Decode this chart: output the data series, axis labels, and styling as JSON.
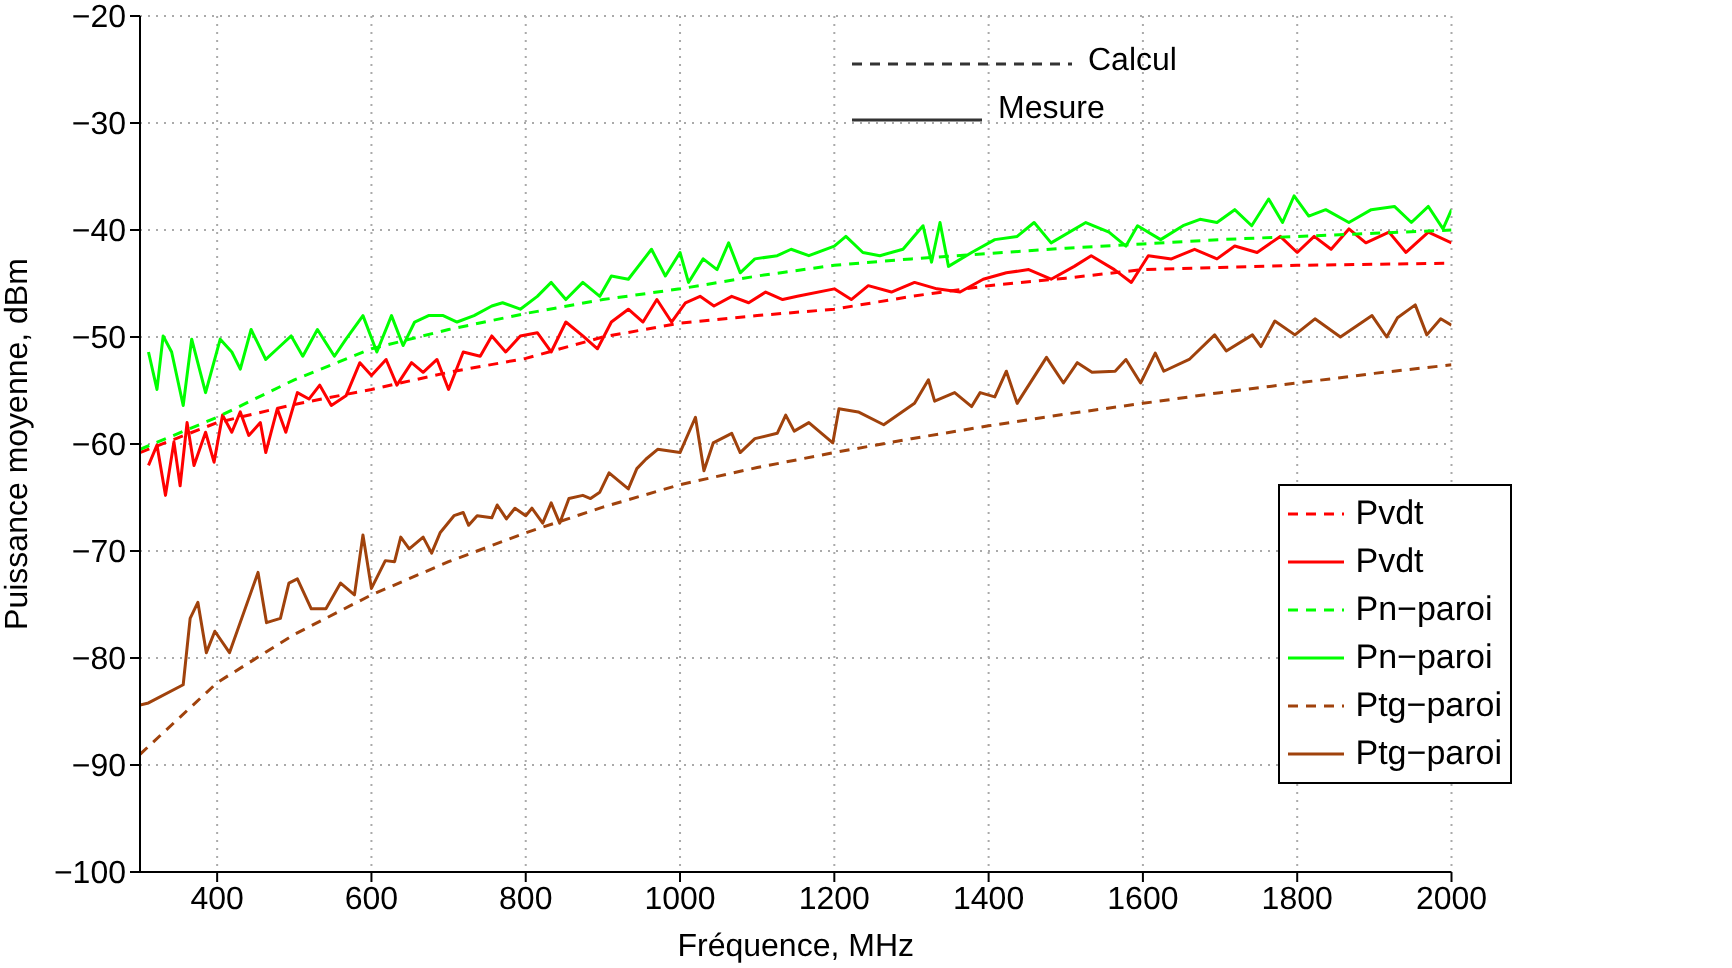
{
  "chart_data": {
    "type": "line",
    "xlabel": "Fréquence, MHz",
    "ylabel": "Puissance moyenne, dBm",
    "xlim": [
      300,
      2000
    ],
    "ylim": [
      -100,
      -20
    ],
    "xticks": [
      400,
      600,
      800,
      1000,
      1200,
      1400,
      1600,
      1800,
      2000
    ],
    "yticks": [
      -100,
      -90,
      -80,
      -70,
      -60,
      -50,
      -40,
      -30,
      -20
    ],
    "grid": true,
    "legend": "right",
    "marker": "none",
    "annotations": [
      "Calcul",
      "Mesure"
    ],
    "series": [
      {
        "name": "Pvdt",
        "color": "#ff0000",
        "line_style": "dashed",
        "x": [
          300,
          400,
          500,
          600,
          700,
          800,
          900,
          1000,
          1100,
          1200,
          1300,
          1400,
          1500,
          1600,
          1700,
          1800,
          1900,
          2000
        ],
        "values": [
          -60.8,
          -58,
          -56.3,
          -54.9,
          -53.3,
          -52,
          -50,
          -48.7,
          -48,
          -47.4,
          -46.2,
          -45.2,
          -44.5,
          -43.7,
          -43.5,
          -43.3,
          -43.2,
          -43.1
        ]
      },
      {
        "name": "Pvdt",
        "color": "#ff0000",
        "line_style": "solid",
        "x": [
          311,
          322,
          333,
          344,
          352,
          361,
          370,
          385,
          396,
          407,
          419,
          430,
          441,
          456,
          463,
          478,
          489,
          504,
          519,
          533,
          548,
          567,
          585,
          600,
          619,
          633,
          652,
          667,
          685,
          700,
          719,
          741,
          756,
          774,
          793,
          815,
          833,
          852,
          874,
          893,
          911,
          933,
          952,
          970,
          989,
          1007,
          1026,
          1044,
          1067,
          1089,
          1111,
          1133,
          1152,
          1200,
          1222,
          1244,
          1274,
          1304,
          1333,
          1363,
          1393,
          1423,
          1452,
          1481,
          1511,
          1533,
          1563,
          1585,
          1607,
          1637,
          1667,
          1696,
          1719,
          1748,
          1778,
          1800,
          1822,
          1844,
          1867,
          1889,
          1919,
          1941,
          1970,
          2000
        ],
        "values": [
          -62,
          -60.1,
          -64.8,
          -59.8,
          -63.9,
          -58,
          -62,
          -58.9,
          -61.7,
          -57.3,
          -58.9,
          -57,
          -59.2,
          -58,
          -60.8,
          -56.7,
          -58.9,
          -55.2,
          -55.8,
          -54.5,
          -56.4,
          -55.5,
          -52.4,
          -53.6,
          -52.1,
          -54.5,
          -52.4,
          -53.3,
          -52.1,
          -54.9,
          -51.4,
          -51.8,
          -49.9,
          -51.4,
          -49.9,
          -49.6,
          -51.4,
          -48.6,
          -49.9,
          -51.1,
          -48.6,
          -47.4,
          -48.6,
          -46.5,
          -48.6,
          -46.8,
          -46.2,
          -47.1,
          -46.2,
          -46.8,
          -45.8,
          -46.5,
          -46.2,
          -45.5,
          -46.5,
          -45.2,
          -45.8,
          -44.9,
          -45.5,
          -45.8,
          -44.6,
          -44,
          -43.7,
          -44.6,
          -43.4,
          -42.4,
          -43.7,
          -44.9,
          -42.4,
          -42.7,
          -41.8,
          -42.7,
          -41.5,
          -42.1,
          -40.6,
          -42.1,
          -40.6,
          -41.8,
          -39.9,
          -41.2,
          -40.2,
          -42.1,
          -40.2,
          -41.2
        ]
      },
      {
        "name": "Pn−paroi",
        "color": "#00ff00",
        "line_style": "dashed",
        "x": [
          300,
          400,
          500,
          600,
          700,
          800,
          900,
          1000,
          1100,
          1200,
          1300,
          1400,
          1500,
          1600,
          1700,
          1800,
          1900,
          2000
        ],
        "values": [
          -60.5,
          -57.5,
          -54,
          -51.1,
          -49.3,
          -47.8,
          -46.5,
          -45.5,
          -44.3,
          -43.3,
          -42.7,
          -42.2,
          -41.7,
          -41.3,
          -40.9,
          -40.6,
          -40.3,
          -40
        ]
      },
      {
        "name": "Pn−paroi",
        "color": "#00ff00",
        "line_style": "solid",
        "x": [
          311,
          322,
          330,
          341,
          356,
          367,
          385,
          404,
          419,
          430,
          444,
          463,
          478,
          496,
          511,
          530,
          552,
          567,
          589,
          607,
          626,
          641,
          656,
          674,
          693,
          711,
          733,
          756,
          770,
          793,
          815,
          833,
          852,
          874,
          896,
          911,
          933,
          963,
          981,
          1000,
          1011,
          1030,
          1048,
          1063,
          1078,
          1097,
          1126,
          1144,
          1167,
          1200,
          1215,
          1237,
          1259,
          1289,
          1315,
          1326,
          1337,
          1348,
          1378,
          1408,
          1437,
          1459,
          1481,
          1526,
          1556,
          1578,
          1593,
          1623,
          1652,
          1674,
          1696,
          1719,
          1741,
          1763,
          1781,
          1796,
          1815,
          1837,
          1867,
          1896,
          1926,
          1948,
          1970,
          1989,
          2000
        ],
        "values": [
          -51.4,
          -54.9,
          -49.9,
          -51.4,
          -56.4,
          -50.2,
          -55.2,
          -50.2,
          -51.4,
          -53,
          -49.3,
          -52.1,
          -51.1,
          -49.9,
          -51.8,
          -49.3,
          -51.8,
          -50.2,
          -48,
          -51.4,
          -48,
          -50.8,
          -48.6,
          -48,
          -48,
          -48.6,
          -48,
          -47.1,
          -46.8,
          -47.4,
          -46.2,
          -44.9,
          -46.5,
          -44.9,
          -46.2,
          -44.3,
          -44.6,
          -41.8,
          -44.3,
          -42.1,
          -44.9,
          -42.7,
          -43.7,
          -41.2,
          -44,
          -42.7,
          -42.4,
          -41.8,
          -42.4,
          -41.5,
          -40.6,
          -42.1,
          -42.4,
          -41.8,
          -39.6,
          -43,
          -39.3,
          -43.4,
          -42.1,
          -40.9,
          -40.6,
          -39.3,
          -41.2,
          -39.3,
          -40.2,
          -41.5,
          -39.6,
          -40.9,
          -39.6,
          -39,
          -39.3,
          -38.1,
          -39.6,
          -37.1,
          -39.3,
          -36.8,
          -38.7,
          -38.1,
          -39.3,
          -38.1,
          -37.8,
          -39.3,
          -37.8,
          -39.9,
          -38.1
        ]
      },
      {
        "name": "Ptg−paroi",
        "color": "#a0420c",
        "line_style": "dashed",
        "x": [
          300,
          400,
          500,
          600,
          700,
          800,
          900,
          1000,
          1100,
          1200,
          1300,
          1400,
          1500,
          1600,
          1700,
          1800,
          1900,
          2000
        ],
        "values": [
          -89,
          -82.3,
          -77.8,
          -74.1,
          -71,
          -68.3,
          -65.9,
          -63.8,
          -62.2,
          -60.8,
          -59.5,
          -58.3,
          -57.2,
          -56.2,
          -55.2,
          -54.3,
          -53.4,
          -52.6
        ]
      },
      {
        "name": "Ptg−paroi",
        "color": "#a0420c",
        "line_style": "solid",
        "x": [
          300,
          311,
          356,
          365,
          375,
          386,
          397,
          416,
          453,
          464,
          482,
          493,
          504,
          522,
          541,
          560,
          578,
          589,
          600,
          618,
          630,
          638,
          649,
          667,
          678,
          689,
          707,
          719,
          726,
          737,
          756,
          763,
          775,
          786,
          800,
          808,
          822,
          833,
          844,
          856,
          874,
          884,
          896,
          908,
          933,
          944,
          956,
          971,
          1000,
          1020,
          1031,
          1043,
          1067,
          1078,
          1097,
          1126,
          1137,
          1148,
          1167,
          1198,
          1206,
          1231,
          1264,
          1304,
          1322,
          1330,
          1356,
          1378,
          1389,
          1408,
          1423,
          1437,
          1475,
          1497,
          1515,
          1534,
          1564,
          1578,
          1597,
          1616,
          1627,
          1660,
          1693,
          1708,
          1742,
          1753,
          1771,
          1797,
          1823,
          1856,
          1897,
          1916,
          1930,
          1953,
          1968,
          1986,
          2000
        ],
        "values": [
          -84.4,
          -84.2,
          -82.5,
          -76.3,
          -74.8,
          -79.5,
          -77.5,
          -79.5,
          -72,
          -76.7,
          -76.3,
          -73,
          -72.6,
          -75.4,
          -75.4,
          -73,
          -74.1,
          -68.5,
          -73.5,
          -70.9,
          -71,
          -68.7,
          -69.8,
          -68.7,
          -70.2,
          -68.3,
          -66.7,
          -66.4,
          -67.6,
          -66.7,
          -66.9,
          -65.7,
          -67,
          -66,
          -66.7,
          -66,
          -67.4,
          -65.5,
          -67.4,
          -65.1,
          -64.8,
          -65.1,
          -64.5,
          -62.7,
          -64.2,
          -62.3,
          -61.4,
          -60.5,
          -60.8,
          -57.5,
          -62.5,
          -59.9,
          -59,
          -60.8,
          -59.5,
          -59,
          -57.3,
          -58.8,
          -58,
          -59.9,
          -56.7,
          -57,
          -58.2,
          -56.2,
          -54,
          -56,
          -55.2,
          -56.5,
          -55.2,
          -55.6,
          -53.2,
          -56.2,
          -51.9,
          -54.3,
          -52.4,
          -53.3,
          -53.2,
          -52.1,
          -54.3,
          -51.5,
          -53.2,
          -52.1,
          -49.8,
          -51.3,
          -49.8,
          -50.9,
          -48.5,
          -49.8,
          -48.3,
          -50,
          -48,
          -50,
          -48.2,
          -47,
          -49.8,
          -48.3,
          -48.9
        ]
      }
    ]
  }
}
